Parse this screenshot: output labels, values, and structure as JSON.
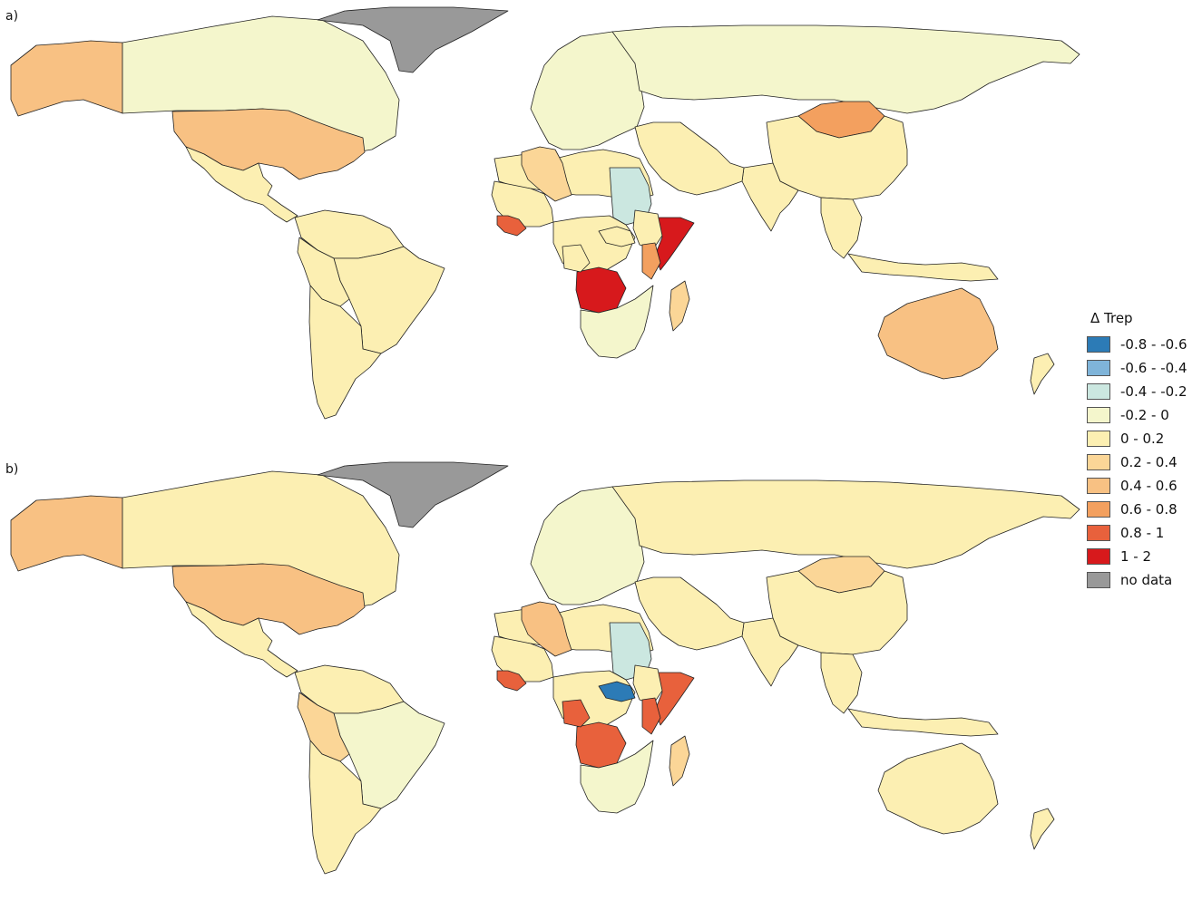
{
  "panels": [
    {
      "label": "a)"
    },
    {
      "label": "b)"
    }
  ],
  "legend": {
    "title": "Δ Trep",
    "items": [
      {
        "label": "-0.8 - -0.6",
        "color": "#2c7bb6"
      },
      {
        "label": "-0.6 - -0.4",
        "color": "#7fb4d9"
      },
      {
        "label": "-0.4 - -0.2",
        "color": "#cbe7e0"
      },
      {
        "label": "-0.2 - 0",
        "color": "#f4f6cc"
      },
      {
        "label": "0 - 0.2",
        "color": "#fcefb2"
      },
      {
        "label": "0.2 - 0.4",
        "color": "#fbd697"
      },
      {
        "label": "0.4 - 0.6",
        "color": "#f8c183"
      },
      {
        "label": "0.6 - 0.8",
        "color": "#f3a05f"
      },
      {
        "label": "0.8 - 1",
        "color": "#e8613c"
      },
      {
        "label": "1 - 2",
        "color": "#d7191c"
      },
      {
        "label": "no data",
        "color": "#999999"
      }
    ]
  },
  "regions": [
    {
      "name": "alaska",
      "a": "0.4 - 0.6",
      "b": "0.4 - 0.6"
    },
    {
      "name": "canada",
      "a": "-0.2 - 0",
      "b": "0 - 0.2"
    },
    {
      "name": "greenland",
      "a": "no data",
      "b": "no data"
    },
    {
      "name": "united-states",
      "a": "0.4 - 0.6",
      "b": "0.4 - 0.6"
    },
    {
      "name": "mexico-central-america",
      "a": "0 - 0.2",
      "b": "0 - 0.2"
    },
    {
      "name": "south-america-north",
      "a": "0 - 0.2",
      "b": "0 - 0.2"
    },
    {
      "name": "brazil",
      "a": "0 - 0.2",
      "b": "-0.2 - 0"
    },
    {
      "name": "peru-bolivia",
      "a": "0 - 0.2",
      "b": "0.2 - 0.4"
    },
    {
      "name": "southern-cone",
      "a": "0 - 0.2",
      "b": "0 - 0.2"
    },
    {
      "name": "europe",
      "a": "-0.2 - 0",
      "b": "-0.2 - 0"
    },
    {
      "name": "russia",
      "a": "-0.2 - 0",
      "b": "0 - 0.2"
    },
    {
      "name": "mongolia",
      "a": "0.6 - 0.8",
      "b": "0.2 - 0.4"
    },
    {
      "name": "china",
      "a": "0 - 0.2",
      "b": "0 - 0.2"
    },
    {
      "name": "india",
      "a": "0 - 0.2",
      "b": "0 - 0.2"
    },
    {
      "name": "middle-east",
      "a": "0 - 0.2",
      "b": "0 - 0.2"
    },
    {
      "name": "north-africa",
      "a": "0 - 0.2",
      "b": "0 - 0.2"
    },
    {
      "name": "algeria",
      "a": "0.2 - 0.4",
      "b": "0.4 - 0.6"
    },
    {
      "name": "sudan",
      "a": "-0.4 - -0.2",
      "b": "-0.4 - -0.2"
    },
    {
      "name": "west-africa",
      "a": "0 - 0.2",
      "b": "0 - 0.2"
    },
    {
      "name": "guinea",
      "a": "0.8 - 1",
      "b": "0.8 - 1"
    },
    {
      "name": "central-africa",
      "a": "0 - 0.2",
      "b": "0 - 0.2"
    },
    {
      "name": "south-sudan",
      "a": "0 - 0.2",
      "b": "-0.8 - -0.6"
    },
    {
      "name": "somalia",
      "a": "1 - 2",
      "b": "0.8 - 1"
    },
    {
      "name": "ethiopia",
      "a": "0 - 0.2",
      "b": "0 - 0.2"
    },
    {
      "name": "kenya",
      "a": "0.6 - 0.8",
      "b": "0.8 - 1"
    },
    {
      "name": "angola",
      "a": "1 - 2",
      "b": "0.8 - 1"
    },
    {
      "name": "congo",
      "a": "0 - 0.2",
      "b": "0.8 - 1"
    },
    {
      "name": "southern-africa",
      "a": "-0.2 - 0",
      "b": "-0.2 - 0"
    },
    {
      "name": "madagascar",
      "a": "0.2 - 0.4",
      "b": "0.2 - 0.4"
    },
    {
      "name": "southeast-asia",
      "a": "0 - 0.2",
      "b": "0 - 0.2"
    },
    {
      "name": "indonesia",
      "a": "0 - 0.2",
      "b": "0 - 0.2"
    },
    {
      "name": "australia",
      "a": "0.4 - 0.6",
      "b": "0 - 0.2"
    },
    {
      "name": "new-zealand",
      "a": "0 - 0.2",
      "b": "0 - 0.2"
    }
  ]
}
